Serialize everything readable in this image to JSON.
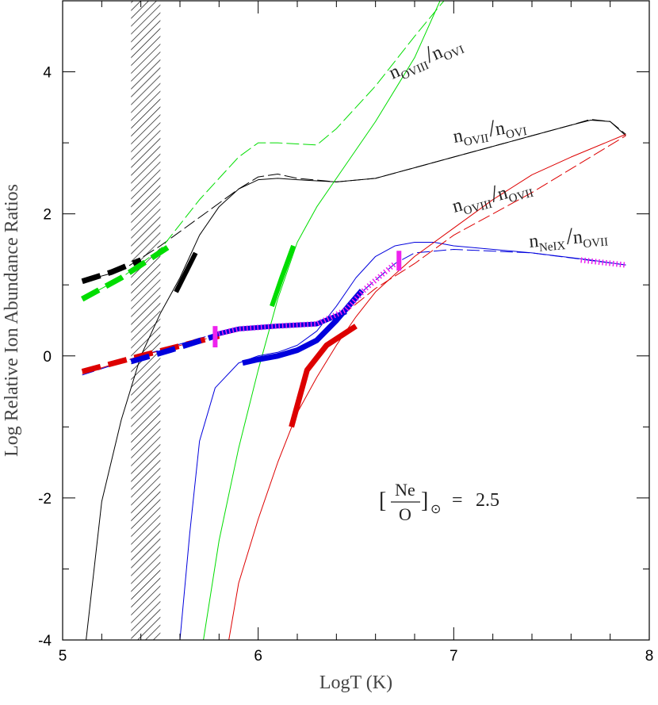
{
  "chart_data": {
    "type": "line",
    "xlabel": "LogT (K)",
    "ylabel": "Log Relative Ion Abundance Ratios",
    "xlim": [
      5,
      8
    ],
    "ylim": [
      -4,
      5
    ],
    "xticks": [
      5,
      6,
      7,
      8
    ],
    "x_minor_ticks": [
      5.2,
      5.4,
      5.6,
      5.8,
      6.2,
      6.4,
      6.6,
      6.8,
      7.2,
      7.4,
      7.6,
      7.8
    ],
    "yticks": [
      -4,
      -2,
      0,
      2,
      4
    ],
    "y_minor_ticks": [
      -3,
      -1,
      1,
      3
    ],
    "shaded_xrange": [
      5.35,
      5.5
    ],
    "series": [
      {
        "color": "#000000",
        "linestyle": "solid",
        "linewidth": 1,
        "x": [
          5.12,
          5.2,
          5.3,
          5.4,
          5.5,
          5.6,
          5.7,
          5.8,
          5.9,
          6.0,
          6.1,
          6.2,
          6.4,
          6.6,
          6.8,
          7.0,
          7.2,
          7.4,
          7.6,
          7.7,
          7.8,
          7.88
        ],
        "values": [
          -4,
          -2.05,
          -0.9,
          0.0,
          0.6,
          1.1,
          1.7,
          2.1,
          2.35,
          2.48,
          2.5,
          2.48,
          2.45,
          2.5,
          2.65,
          2.8,
          2.95,
          3.1,
          3.25,
          3.32,
          3.3,
          3.1
        ]
      },
      {
        "color": "#000000",
        "linestyle": "dashed",
        "linewidth": 1,
        "x": [
          5.1,
          5.3,
          5.5,
          5.7,
          5.9,
          6.0,
          6.1,
          6.2,
          6.4,
          6.6,
          6.8,
          7.0,
          7.2,
          7.4,
          7.6,
          7.7,
          7.8,
          7.88
        ],
        "values": [
          1.05,
          1.2,
          1.55,
          1.95,
          2.35,
          2.52,
          2.56,
          2.5,
          2.45,
          2.5,
          2.65,
          2.8,
          2.95,
          3.1,
          3.25,
          3.33,
          3.3,
          3.12
        ]
      },
      {
        "color": "#00dd00",
        "linestyle": "solid",
        "linewidth": 1,
        "x": [
          5.72,
          5.8,
          5.9,
          6.0,
          6.1,
          6.2,
          6.3,
          6.4,
          6.6,
          6.8,
          6.93
        ],
        "values": [
          -4,
          -2.6,
          -1.3,
          -0.2,
          0.8,
          1.6,
          2.1,
          2.5,
          3.3,
          4.2,
          5
        ]
      },
      {
        "color": "#00dd00",
        "linestyle": "dashed",
        "linewidth": 1,
        "x": [
          5.1,
          5.3,
          5.5,
          5.7,
          5.9,
          6.0,
          6.1,
          6.3,
          6.4,
          6.6,
          6.8,
          6.95
        ],
        "values": [
          0.8,
          1.1,
          1.5,
          2.2,
          2.8,
          3.0,
          3.0,
          2.97,
          3.2,
          3.8,
          4.5,
          5
        ]
      },
      {
        "color": "#0000dd",
        "linestyle": "solid",
        "linewidth": 1,
        "x": [
          5.6,
          5.65,
          5.7,
          5.78,
          5.9,
          6.0,
          6.1,
          6.2,
          6.3,
          6.4,
          6.5,
          6.6,
          6.7,
          6.8,
          6.9,
          7.0,
          7.4,
          7.7,
          7.88
        ],
        "values": [
          -4,
          -2.5,
          -1.2,
          -0.45,
          -0.1,
          0.0,
          0.05,
          0.15,
          0.35,
          0.7,
          1.1,
          1.4,
          1.55,
          1.6,
          1.6,
          1.55,
          1.45,
          1.35,
          1.28
        ]
      },
      {
        "color": "#0000dd",
        "linestyle": "dashed",
        "linewidth": 1,
        "x": [
          5.1,
          5.4,
          5.7,
          5.9,
          6.1,
          6.3,
          6.45,
          6.55,
          6.7,
          6.8,
          7.0,
          7.4,
          7.88
        ],
        "values": [
          -0.27,
          0.0,
          0.25,
          0.38,
          0.42,
          0.45,
          0.65,
          0.95,
          1.3,
          1.45,
          1.5,
          1.45,
          1.28
        ]
      },
      {
        "color": "#dd0000",
        "linestyle": "solid",
        "linewidth": 1,
        "x": [
          5.85,
          5.9,
          6.0,
          6.1,
          6.2,
          6.3,
          6.4,
          6.5,
          6.6,
          6.8,
          7.0,
          7.2,
          7.4,
          7.6,
          7.88
        ],
        "values": [
          -4,
          -3.2,
          -2.3,
          -1.5,
          -0.8,
          -0.3,
          0.15,
          0.55,
          0.9,
          1.4,
          1.8,
          2.2,
          2.55,
          2.8,
          3.12
        ]
      },
      {
        "color": "#dd0000",
        "linestyle": "dashed",
        "linewidth": 1,
        "x": [
          5.1,
          5.4,
          5.7,
          5.9,
          6.1,
          6.3,
          6.45,
          6.6,
          6.8,
          7.0,
          7.4,
          7.88
        ],
        "values": [
          -0.25,
          0.0,
          0.22,
          0.35,
          0.42,
          0.45,
          0.62,
          0.95,
          1.3,
          1.7,
          2.3,
          3.1
        ]
      },
      {
        "color": "#000000",
        "linestyle": "dashed",
        "linewidth": 7,
        "x": [
          5.1,
          5.25,
          5.4
        ],
        "values": [
          1.05,
          1.18,
          1.35
        ]
      },
      {
        "color": "#000000",
        "linestyle": "solid",
        "linewidth": 6,
        "x": [
          5.58,
          5.68
        ],
        "values": [
          0.9,
          1.45
        ]
      },
      {
        "color": "#00dd00",
        "linestyle": "dashed",
        "linewidth": 7,
        "x": [
          5.1,
          5.3,
          5.55
        ],
        "values": [
          0.8,
          1.1,
          1.55
        ]
      },
      {
        "color": "#00dd00",
        "linestyle": "solid",
        "linewidth": 6,
        "x": [
          6.07,
          6.12,
          6.18
        ],
        "values": [
          0.7,
          1.1,
          1.55
        ]
      },
      {
        "color": "#dd0000",
        "linestyle": "dashed",
        "linewidth": 7,
        "x": [
          5.1,
          5.4,
          5.8
        ],
        "values": [
          -0.22,
          0.0,
          0.28
        ]
      },
      {
        "color": "#dd0000",
        "linestyle": "solid",
        "linewidth": 7,
        "x": [
          6.17,
          6.25,
          6.35,
          6.5
        ],
        "values": [
          -1.0,
          -0.2,
          0.15,
          0.42
        ]
      },
      {
        "color": "#0000dd",
        "linestyle": "dashed",
        "linewidth": 7,
        "x": [
          5.35,
          5.55,
          5.78
        ],
        "values": [
          -0.08,
          0.08,
          0.28
        ]
      },
      {
        "color": "#0000dd",
        "linestyle": "solid",
        "linewidth": 7,
        "x": [
          5.92,
          6.0,
          6.1,
          6.2,
          6.3,
          6.4,
          6.53
        ],
        "values": [
          -0.1,
          -0.05,
          0.0,
          0.08,
          0.22,
          0.5,
          0.92
        ]
      },
      {
        "color": "#0000dd",
        "linestyle": "solid",
        "linewidth": 6,
        "x": [
          5.78,
          5.9,
          6.1,
          6.3,
          6.45
        ],
        "values": [
          0.3,
          0.38,
          0.42,
          0.45,
          0.62
        ]
      },
      {
        "color": "#ee22ee",
        "linestyle": "dotted",
        "linewidth": 7,
        "x": [
          5.78,
          5.9,
          6.1,
          6.3,
          6.45,
          6.55,
          6.7
        ],
        "values": [
          0.3,
          0.38,
          0.42,
          0.45,
          0.65,
          0.95,
          1.3
        ]
      },
      {
        "color": "#ee22ee",
        "linestyle": "dotted",
        "linewidth": 7,
        "x": [
          7.65,
          7.88
        ],
        "values": [
          1.35,
          1.28
        ]
      }
    ],
    "vmarkers": {
      "color": "#ee22ee",
      "x": [
        5.78,
        6.72
      ],
      "low": [
        0.12,
        1.2
      ],
      "high": [
        0.42,
        1.48
      ]
    },
    "annotations": [
      {
        "parts": [
          "n",
          "OVIII",
          "/",
          "n",
          "OVI"
        ]
      },
      {
        "parts": [
          "n",
          "OVII",
          "/",
          "n",
          "OVI"
        ]
      },
      {
        "parts": [
          "n",
          "OVIII",
          "/",
          "n",
          "OVII"
        ]
      },
      {
        "parts": [
          "n",
          "NeIX",
          "/",
          "n",
          "OVII"
        ]
      }
    ],
    "formula": {
      "open": "[",
      "numerator": "Ne",
      "denominator": "O",
      "close": "]",
      "sub": "⊙",
      "equals": "=",
      "value": "2.5"
    }
  }
}
